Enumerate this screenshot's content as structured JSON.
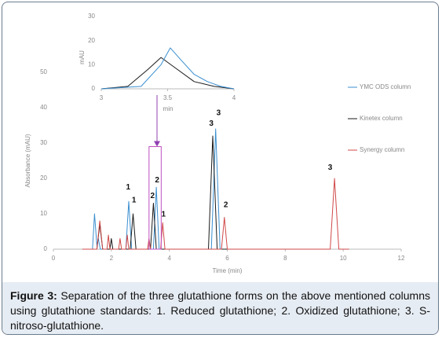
{
  "chart_data": [
    {
      "type": "line",
      "xlabel": "Time (min)",
      "ylabel": "Absorbance (mAU)",
      "xlim": [
        0,
        12
      ],
      "xticks": [
        0,
        2,
        4,
        6,
        8,
        10,
        12
      ],
      "ylim": [
        0,
        50
      ],
      "yticks": [
        0,
        10,
        20,
        30,
        40,
        50
      ],
      "legend": "upper right",
      "series": [
        {
          "name": "YMC ODS column",
          "color": "#3a8fd0",
          "x": [
            1.2,
            1.35,
            1.42,
            1.5,
            1.55,
            1.62,
            1.7,
            2.5,
            2.6,
            2.7,
            3.45,
            3.55,
            3.65,
            5.45,
            5.6,
            5.75,
            6.0
          ],
          "values": [
            0,
            0,
            10,
            1,
            3,
            0,
            0,
            0,
            13.5,
            0,
            0,
            17.5,
            0,
            0,
            34,
            0,
            0
          ]
        },
        {
          "name": "Kinetex column",
          "color": "#1a1a1a",
          "x": [
            1.0,
            1.5,
            1.6,
            1.7,
            1.95,
            2.0,
            2.05,
            2.65,
            2.75,
            2.85,
            3.35,
            3.45,
            3.55,
            5.35,
            5.5,
            5.65,
            6.0
          ],
          "values": [
            0,
            0,
            7,
            0,
            0,
            3,
            0,
            0,
            10,
            0,
            0,
            13,
            0,
            0,
            32,
            0,
            0
          ]
        },
        {
          "name": "Synergy column",
          "color": "#d04848",
          "x": [
            1.0,
            1.5,
            1.6,
            1.7,
            1.85,
            1.9,
            1.95,
            2.25,
            2.3,
            2.35,
            2.5,
            2.55,
            2.6,
            3.25,
            3.3,
            3.35,
            3.7,
            3.77,
            3.85,
            5.8,
            5.9,
            6.0,
            9.55,
            9.7,
            9.85,
            10.2
          ],
          "values": [
            0,
            0,
            8,
            0,
            0,
            4,
            0,
            0,
            3,
            0,
            0,
            4,
            0,
            0,
            3,
            0,
            0,
            7.5,
            0,
            0,
            9,
            0,
            0,
            20,
            0,
            0
          ]
        }
      ],
      "annotations": [
        "1",
        "1",
        "2",
        "2",
        "1",
        "3",
        "3",
        "2",
        "3"
      ]
    },
    {
      "type": "line",
      "xlabel": "min",
      "ylabel": "mAU",
      "xlim": [
        3,
        4
      ],
      "xticks": [
        3,
        3.5,
        4
      ],
      "ylim": [
        0,
        30
      ],
      "yticks": [
        0,
        10,
        20,
        30
      ],
      "series": [
        {
          "color": "#1a1a1a",
          "x": [
            3.0,
            3.2,
            3.35,
            3.45,
            3.55,
            3.7,
            3.85,
            4.0
          ],
          "values": [
            0,
            1,
            8,
            13,
            9,
            3,
            1,
            0
          ]
        },
        {
          "color": "#3a8fd0",
          "x": [
            3.0,
            3.3,
            3.45,
            3.52,
            3.6,
            3.7,
            3.8,
            3.9,
            4.0
          ],
          "values": [
            0,
            1,
            10,
            17,
            12,
            6,
            3,
            1,
            0
          ]
        }
      ]
    }
  ],
  "caption": {
    "label": "Figure 3:",
    "text": " Separation of the three glutathione forms on the above mentioned columns using glutathione standards: 1. Reduced glutathione; 2. Oxidized glutathione; 3. S-nitroso-glutathione."
  }
}
